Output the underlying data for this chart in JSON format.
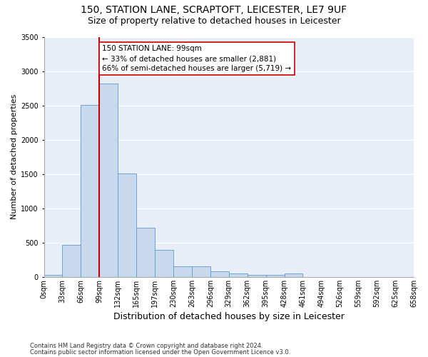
{
  "title": "150, STATION LANE, SCRAPTOFT, LEICESTER, LE7 9UF",
  "subtitle": "Size of property relative to detached houses in Leicester",
  "xlabel": "Distribution of detached houses by size in Leicester",
  "ylabel": "Number of detached properties",
  "footnote1": "Contains HM Land Registry data © Crown copyright and database right 2024.",
  "footnote2": "Contains public sector information licensed under the Open Government Licence v3.0.",
  "bar_values": [
    25,
    470,
    2510,
    2820,
    1510,
    720,
    390,
    155,
    155,
    80,
    50,
    25,
    25,
    50,
    0,
    0,
    0,
    0,
    0,
    0
  ],
  "bin_labels": [
    "0sqm",
    "33sqm",
    "66sqm",
    "99sqm",
    "132sqm",
    "165sqm",
    "197sqm",
    "230sqm",
    "263sqm",
    "296sqm",
    "329sqm",
    "362sqm",
    "395sqm",
    "428sqm",
    "461sqm",
    "494sqm",
    "526sqm",
    "559sqm",
    "592sqm",
    "625sqm",
    "658sqm"
  ],
  "bar_color": "#c8d9ee",
  "bar_edge_color": "#5b9bd5",
  "vline_x_index": 3,
  "vline_color": "#cc0000",
  "annotation_text": "150 STATION LANE: 99sqm\n← 33% of detached houses are smaller (2,881)\n66% of semi-detached houses are larger (5,719) →",
  "annotation_box_color": "#ffffff",
  "annotation_box_edge": "#cc0000",
  "ylim": [
    0,
    3500
  ],
  "yticks": [
    0,
    500,
    1000,
    1500,
    2000,
    2500,
    3000,
    3500
  ],
  "bg_color": "#e8eef7",
  "title_fontsize": 10,
  "subtitle_fontsize": 9,
  "xlabel_fontsize": 9,
  "ylabel_fontsize": 8,
  "tick_fontsize": 7,
  "annot_fontsize": 7.5,
  "footnote_fontsize": 6
}
